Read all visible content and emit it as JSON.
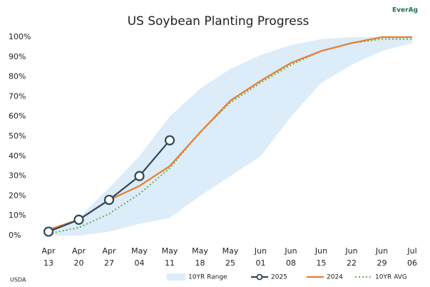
{
  "chart_data": {
    "type": "line",
    "title": "US Soybean Planting Progress",
    "logo": "EverAg",
    "source": "USDA",
    "categories": [
      "Apr 13",
      "Apr 20",
      "Apr 27",
      "May 04",
      "May 11",
      "May 18",
      "May 25",
      "Jun 01",
      "Jun 08",
      "Jun 15",
      "Jun 22",
      "Jun 29",
      "Jul 06"
    ],
    "ylim": [
      0,
      100
    ],
    "yticks": [
      {
        "value": 0,
        "label": "0%"
      },
      {
        "value": 10,
        "label": "10%"
      },
      {
        "value": 20,
        "label": "20%"
      },
      {
        "value": 30,
        "label": "30%"
      },
      {
        "value": 40,
        "label": "40%"
      },
      {
        "value": 50,
        "label": "50%"
      },
      {
        "value": 60,
        "label": "60%"
      },
      {
        "value": 70,
        "label": "70%"
      },
      {
        "value": 80,
        "label": "80%"
      },
      {
        "value": 90,
        "label": "90%"
      },
      {
        "value": 100,
        "label": "100%"
      }
    ],
    "range": {
      "name": "10YR Range",
      "color": "#dcecf9",
      "lower": [
        0,
        0,
        2,
        6,
        9,
        20,
        30,
        40,
        60,
        77,
        86,
        93,
        97
      ],
      "upper": [
        3,
        9,
        24,
        40,
        60,
        74,
        84,
        91,
        96,
        99,
        100,
        100,
        100
      ]
    },
    "series": [
      {
        "name": "2025",
        "color": "#2f4858",
        "values": [
          2,
          8,
          18,
          30,
          48,
          null,
          null,
          null,
          null,
          null,
          null,
          null,
          null
        ]
      },
      {
        "name": "2024",
        "color": "#e87d2f",
        "values": [
          3,
          8,
          18,
          25,
          35,
          52,
          68,
          78,
          87,
          93,
          97,
          100,
          100
        ]
      },
      {
        "name": "10YR AVG",
        "color": "#6ab04c",
        "values": [
          1,
          4,
          11,
          21,
          34,
          52,
          67,
          77,
          86,
          93,
          97,
          99,
          99
        ]
      }
    ]
  }
}
